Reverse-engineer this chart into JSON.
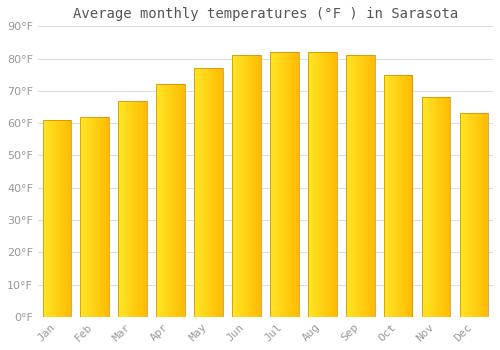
{
  "title": "Average monthly temperatures (°F ) in Sarasota",
  "months": [
    "Jan",
    "Feb",
    "Mar",
    "Apr",
    "May",
    "Jun",
    "Jul",
    "Aug",
    "Sep",
    "Oct",
    "Nov",
    "Dec"
  ],
  "values": [
    61,
    62,
    67,
    72,
    77,
    81,
    82,
    82,
    81,
    75,
    68,
    63
  ],
  "bar_color_main": "#FFA500",
  "bar_color_light": "#FFD060",
  "background_color": "#FFFFFF",
  "grid_color": "#DDDDDD",
  "ylim": [
    0,
    90
  ],
  "yticks": [
    0,
    10,
    20,
    30,
    40,
    50,
    60,
    70,
    80,
    90
  ],
  "title_fontsize": 10,
  "tick_fontsize": 8,
  "tick_color": "#999999",
  "title_color": "#555555"
}
